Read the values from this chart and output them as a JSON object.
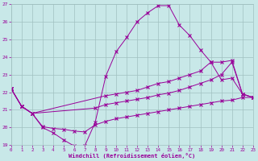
{
  "bg_color": "#c8e8e8",
  "grid_color": "#a0c0c0",
  "line_color": "#990099",
  "xlabel": "Windchill (Refroidissement éolien,°C)",
  "xlim": [
    0,
    23
  ],
  "ylim": [
    19,
    27
  ],
  "yticks": [
    19,
    20,
    21,
    22,
    23,
    24,
    25,
    26,
    27
  ],
  "xticks": [
    0,
    1,
    2,
    3,
    4,
    5,
    6,
    7,
    8,
    9,
    10,
    11,
    12,
    13,
    14,
    15,
    16,
    17,
    18,
    19,
    20,
    21,
    22,
    23
  ],
  "line1": {
    "x": [
      0,
      1,
      2,
      3,
      4,
      5,
      6,
      7,
      8,
      9,
      10,
      11,
      12,
      13,
      14,
      15,
      16,
      17,
      18,
      19,
      20,
      21,
      22,
      23
    ],
    "y": [
      22.2,
      21.2,
      20.8,
      20.0,
      19.7,
      19.3,
      18.95,
      18.95,
      20.3,
      22.9,
      24.3,
      25.1,
      26.0,
      26.5,
      26.9,
      26.9,
      25.8,
      25.2,
      24.4,
      23.7,
      22.7,
      22.8,
      21.9,
      21.7
    ]
  },
  "line2": {
    "x": [
      0,
      1,
      2,
      9,
      10,
      11,
      12,
      13,
      14,
      15,
      16,
      17,
      18,
      19,
      20,
      21,
      22,
      23
    ],
    "y": [
      22.2,
      21.2,
      20.8,
      21.8,
      21.9,
      22.0,
      22.1,
      22.3,
      22.5,
      22.6,
      22.8,
      23.0,
      23.2,
      23.7,
      23.7,
      23.8,
      21.9,
      21.7
    ]
  },
  "line3": {
    "x": [
      0,
      1,
      2,
      8,
      9,
      10,
      11,
      12,
      13,
      14,
      15,
      16,
      17,
      18,
      19,
      20,
      21,
      22,
      23
    ],
    "y": [
      22.2,
      21.2,
      20.8,
      21.1,
      21.3,
      21.4,
      21.5,
      21.6,
      21.7,
      21.85,
      21.95,
      22.1,
      22.3,
      22.5,
      22.7,
      23.0,
      23.7,
      21.9,
      21.7
    ]
  },
  "line4": {
    "x": [
      0,
      1,
      2,
      3,
      4,
      5,
      6,
      7,
      8,
      9,
      10,
      11,
      12,
      13,
      14,
      15,
      16,
      17,
      18,
      19,
      20,
      21,
      22,
      23
    ],
    "y": [
      22.2,
      21.2,
      20.8,
      20.05,
      19.95,
      19.9,
      19.8,
      19.75,
      20.15,
      20.35,
      20.5,
      20.6,
      20.7,
      20.8,
      20.9,
      21.0,
      21.1,
      21.2,
      21.3,
      21.4,
      21.5,
      21.55,
      21.7,
      21.7
    ]
  }
}
